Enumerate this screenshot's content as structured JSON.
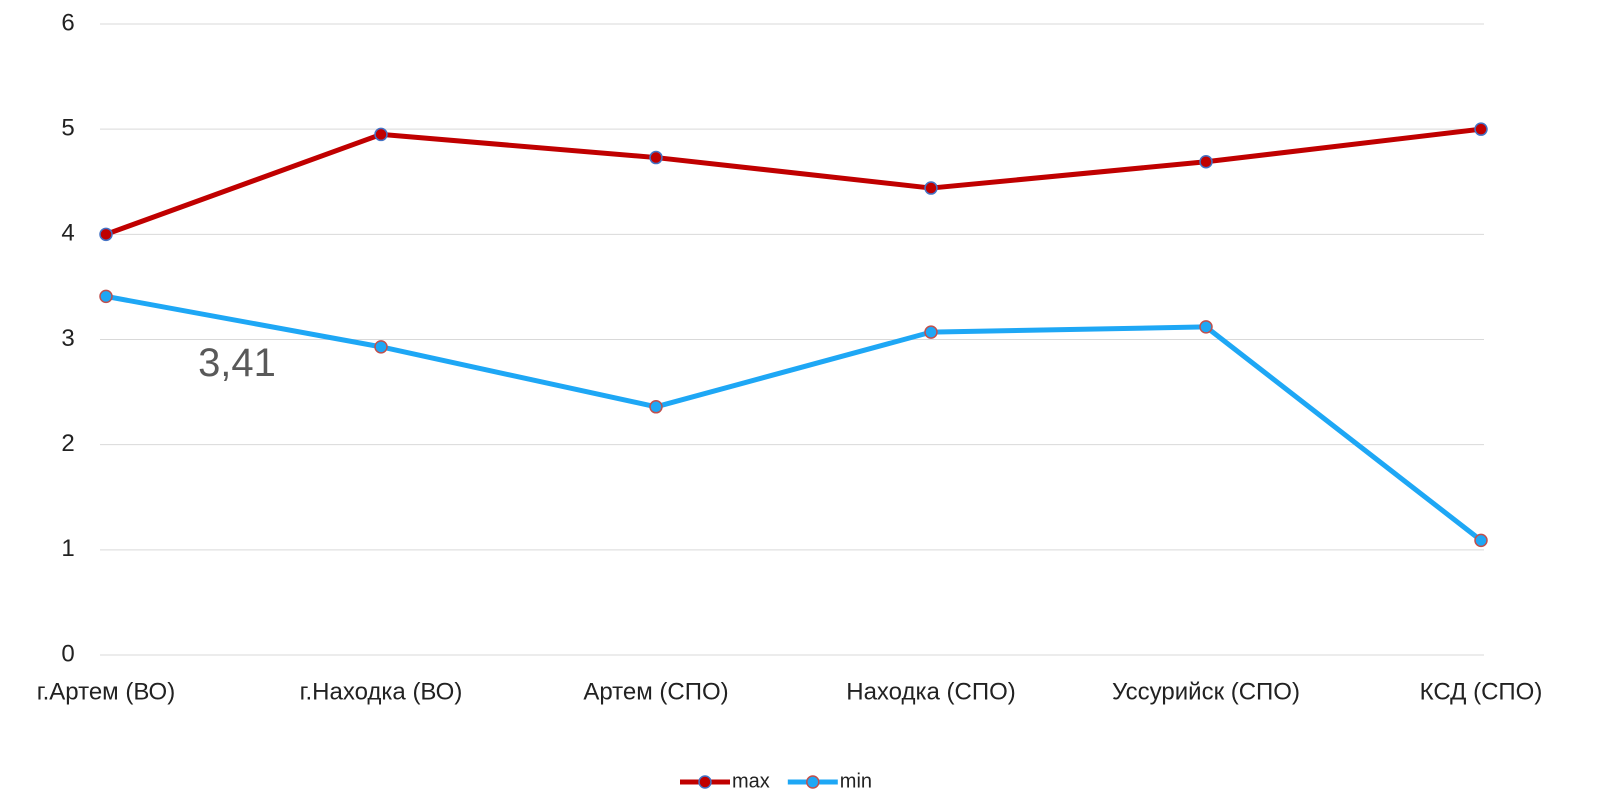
{
  "chart_data": {
    "type": "line",
    "categories": [
      "г.Артем (ВО)",
      "г.Находка (ВО)",
      "Артем (СПО)",
      "Находка (СПО)",
      "Уссурийск (СПО)",
      "КСД (СПО)"
    ],
    "series": [
      {
        "name": "max",
        "color": "#c00000",
        "values": [
          4.0,
          4.95,
          4.73,
          4.44,
          4.69,
          5.0
        ]
      },
      {
        "name": "min",
        "color": "#1ea7f5",
        "values": [
          3.41,
          2.93,
          2.36,
          3.07,
          3.12,
          1.09
        ],
        "value_labels": [
          "3,41",
          null,
          null,
          null,
          null,
          null
        ]
      }
    ],
    "ylim": [
      0,
      6
    ],
    "yticks": [
      0,
      1,
      2,
      3,
      4,
      5,
      6
    ],
    "grid": true,
    "legend": "bottom"
  }
}
